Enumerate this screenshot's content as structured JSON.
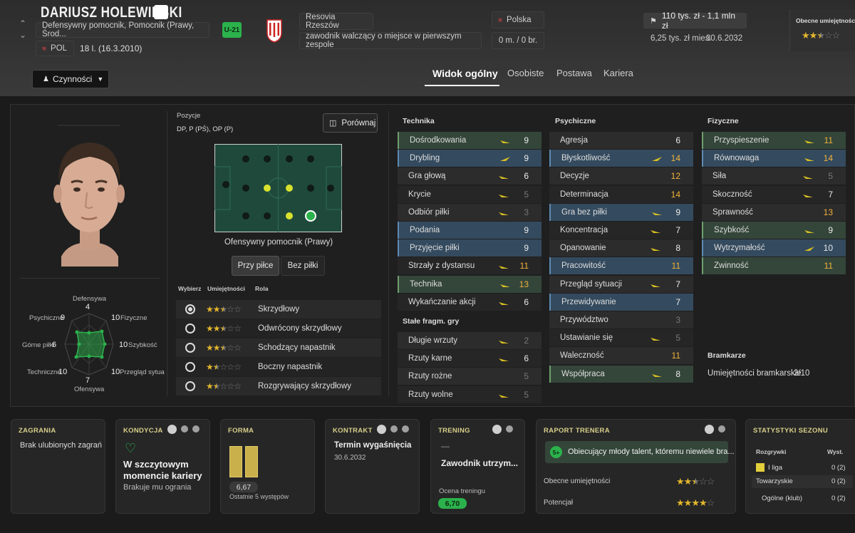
{
  "header": {
    "name": "DARIUSZ HOLEWINSKI",
    "positions": "Defensywny pomocnik, Pomocnik (Prawy, Środ...",
    "u21": "U-21",
    "nation_code": "POL",
    "age_dob": "18 l. (16.3.2010)",
    "club": "Resovia Rzeszów",
    "squad_status": "zawodnik walczący o miejsce w pierwszym zespole",
    "country": "Polska",
    "caps": "0 m. / 0 br.",
    "value": "110 tys. zł - 1,1 mln zł",
    "wage": "6,25 tys. zł mies.",
    "contract_end": "30.6.2032",
    "ability_label": "Obecne umiejętności",
    "ability_stars": 2.5,
    "actions_label": "Czynności"
  },
  "tabs": [
    "Widok ogólny",
    "Osobiste",
    "Postawa",
    "Kariera"
  ],
  "pitch": {
    "positions_label": "Pozycje",
    "positions_value": "DP, P (PŚ), OP (P)",
    "compare_label": "Porównaj",
    "selected_position": "Ofensywny pomocnik (Prawy)",
    "toggle_with": "Przy piłce",
    "toggle_without": "Bez piłki"
  },
  "radar": {
    "labels": {
      "top": "Defensywa",
      "top_val": "4",
      "tr": "Fizyczne",
      "tr_val": "10",
      "r": "Szybkość",
      "r_val": "10",
      "br": "Przegląd sytua",
      "br_val": "10",
      "bottom": "Ofensywa",
      "bottom_val": "7",
      "bl": "Techniczne",
      "bl_val": "10",
      "l": "Górne piłki",
      "l_val": "6",
      "tl": "Psychiczne",
      "tl_val": "9"
    }
  },
  "roles": {
    "col_select": "Wybierz",
    "col_ability": "Umiejętności",
    "col_role": "Rola",
    "items": [
      {
        "name": "Skrzydłowy",
        "stars": 2.5,
        "selected": true
      },
      {
        "name": "Odwrócony skrzydłowy",
        "stars": 2.5,
        "selected": false
      },
      {
        "name": "Schodzący napastnik",
        "stars": 2.5,
        "selected": false
      },
      {
        "name": "Boczny napastnik",
        "stars": 1.5,
        "selected": false
      },
      {
        "name": "Rozgrywający skrzydłowy",
        "stars": 1.5,
        "selected": false
      }
    ]
  },
  "technika": {
    "title": "Technika",
    "items": [
      {
        "name": "Dośrodkowania",
        "value": "9",
        "hl": "green",
        "arrow": "up",
        "color": "white"
      },
      {
        "name": "Drybling",
        "value": "9",
        "hl": "blue",
        "arrow": "up2",
        "color": "white"
      },
      {
        "name": "Gra głową",
        "value": "6",
        "hl": "",
        "arrow": "up",
        "color": "white"
      },
      {
        "name": "Krycie",
        "value": "5",
        "hl": "",
        "arrow": "up",
        "color": "grey"
      },
      {
        "name": "Odbiór piłki",
        "value": "3",
        "hl": "",
        "arrow": "up",
        "color": "grey"
      },
      {
        "name": "Podania",
        "value": "9",
        "hl": "blue",
        "arrow": "",
        "color": "white"
      },
      {
        "name": "Przyjęcie piłki",
        "value": "9",
        "hl": "blue",
        "arrow": "",
        "color": "white"
      },
      {
        "name": "Strzały z dystansu",
        "value": "11",
        "hl": "",
        "arrow": "up",
        "color": "yellow"
      },
      {
        "name": "Technika",
        "value": "13",
        "hl": "green",
        "arrow": "up",
        "color": "yellow"
      },
      {
        "name": "Wykańczanie akcji",
        "value": "6",
        "hl": "",
        "arrow": "up",
        "color": "white"
      }
    ]
  },
  "stale": {
    "title": "Stałe fragm. gry",
    "items": [
      {
        "name": "Długie wrzuty",
        "value": "2",
        "hl": "",
        "arrow": "up",
        "color": "grey"
      },
      {
        "name": "Rzuty karne",
        "value": "6",
        "hl": "",
        "arrow": "up",
        "color": "white"
      },
      {
        "name": "Rzuty rożne",
        "value": "5",
        "hl": "",
        "arrow": "",
        "color": "grey"
      },
      {
        "name": "Rzuty wolne",
        "value": "5",
        "hl": "",
        "arrow": "up",
        "color": "grey"
      }
    ]
  },
  "psychiczne": {
    "title": "Psychiczne",
    "items": [
      {
        "name": "Agresja",
        "value": "6",
        "hl": "",
        "arrow": "",
        "color": "white"
      },
      {
        "name": "Błyskotliwość",
        "value": "14",
        "hl": "blue",
        "arrow": "up2",
        "color": "yellow"
      },
      {
        "name": "Decyzje",
        "value": "12",
        "hl": "",
        "arrow": "",
        "color": "yellow"
      },
      {
        "name": "Determinacja",
        "value": "14",
        "hl": "",
        "arrow": "",
        "color": "yellow"
      },
      {
        "name": "Gra bez piłki",
        "value": "9",
        "hl": "blue",
        "arrow": "up",
        "color": "white"
      },
      {
        "name": "Koncentracja",
        "value": "7",
        "hl": "",
        "arrow": "up",
        "color": "white"
      },
      {
        "name": "Opanowanie",
        "value": "8",
        "hl": "",
        "arrow": "up",
        "color": "white"
      },
      {
        "name": "Pracowitość",
        "value": "11",
        "hl": "blue",
        "arrow": "",
        "color": "yellow"
      },
      {
        "name": "Przegląd sytuacji",
        "value": "7",
        "hl": "",
        "arrow": "up",
        "color": "white"
      },
      {
        "name": "Przewidywanie",
        "value": "7",
        "hl": "blue",
        "arrow": "",
        "color": "white"
      },
      {
        "name": "Przywództwo",
        "value": "3",
        "hl": "",
        "arrow": "",
        "color": "grey"
      },
      {
        "name": "Ustawianie się",
        "value": "5",
        "hl": "",
        "arrow": "up",
        "color": "grey"
      },
      {
        "name": "Waleczność",
        "value": "11",
        "hl": "",
        "arrow": "",
        "color": "yellow"
      },
      {
        "name": "Współpraca",
        "value": "8",
        "hl": "green",
        "arrow": "up",
        "color": "white"
      }
    ]
  },
  "fizyczne": {
    "title": "Fizyczne",
    "items": [
      {
        "name": "Przyspieszenie",
        "value": "11",
        "hl": "green",
        "arrow": "up",
        "color": "yellow"
      },
      {
        "name": "Równowaga",
        "value": "14",
        "hl": "blue",
        "arrow": "up",
        "color": "yellow"
      },
      {
        "name": "Siła",
        "value": "5",
        "hl": "",
        "arrow": "up",
        "color": "grey"
      },
      {
        "name": "Skoczność",
        "value": "7",
        "hl": "",
        "arrow": "up",
        "color": "white"
      },
      {
        "name": "Sprawność",
        "value": "13",
        "hl": "",
        "arrow": "",
        "color": "yellow"
      },
      {
        "name": "Szybkość",
        "value": "9",
        "hl": "green",
        "arrow": "up",
        "color": "white"
      },
      {
        "name": "Wytrzymałość",
        "value": "10",
        "hl": "blue",
        "arrow": "up2",
        "color": "white"
      },
      {
        "name": "Zwinność",
        "value": "11",
        "hl": "green",
        "arrow": "",
        "color": "yellow"
      }
    ]
  },
  "bramkarze": {
    "title": "Bramkarze",
    "label": "Umiejętności bramkarskie",
    "value": "2/10"
  },
  "cards": {
    "zagrania": {
      "title": "ZAGRANIA",
      "text": "Brak ulubionych zagrań"
    },
    "kondycja": {
      "title": "KONDYCJA",
      "headline": "W szczytowym momencie kariery",
      "sub": "Brakuje mu ogrania"
    },
    "forma": {
      "title": "FORMA",
      "rating": "6,67",
      "sub": "Ostatnie 5 występów"
    },
    "kontrakt": {
      "title": "KONTRAKT",
      "label": "Termin wygaśnięcia",
      "date": "30.6.2032"
    },
    "trening": {
      "title": "TRENING",
      "dash": "—",
      "text": "Zawodnik utrzym...",
      "rating_label": "Ocena treningu",
      "rating": "6,70"
    },
    "raport": {
      "title": "RAPORT TRENERA",
      "badge": "5+",
      "text": "Obiecujący młody talent, któremu niewiele bra...",
      "ability_label": "Obecne umiejętności",
      "ability_stars": 2.5,
      "potential_label": "Potencjał",
      "potential_stars": 4
    },
    "stats": {
      "title": "STATYSTYKI SEZONU",
      "col1": "Rozgrywki",
      "col2": "Wyst.",
      "rows": [
        {
          "name": "I liga",
          "value": "0 (2)"
        },
        {
          "name": "Towarzyskie",
          "value": "0 (2)"
        },
        {
          "name": "Ogólne (klub)",
          "value": "0 (2)"
        }
      ]
    }
  },
  "colors": {
    "accent_green": "#2bb24c",
    "attr_yellow": "#f2b33a",
    "star_gold": "#e3b62d",
    "arrow_yellow": "#d9c021"
  }
}
